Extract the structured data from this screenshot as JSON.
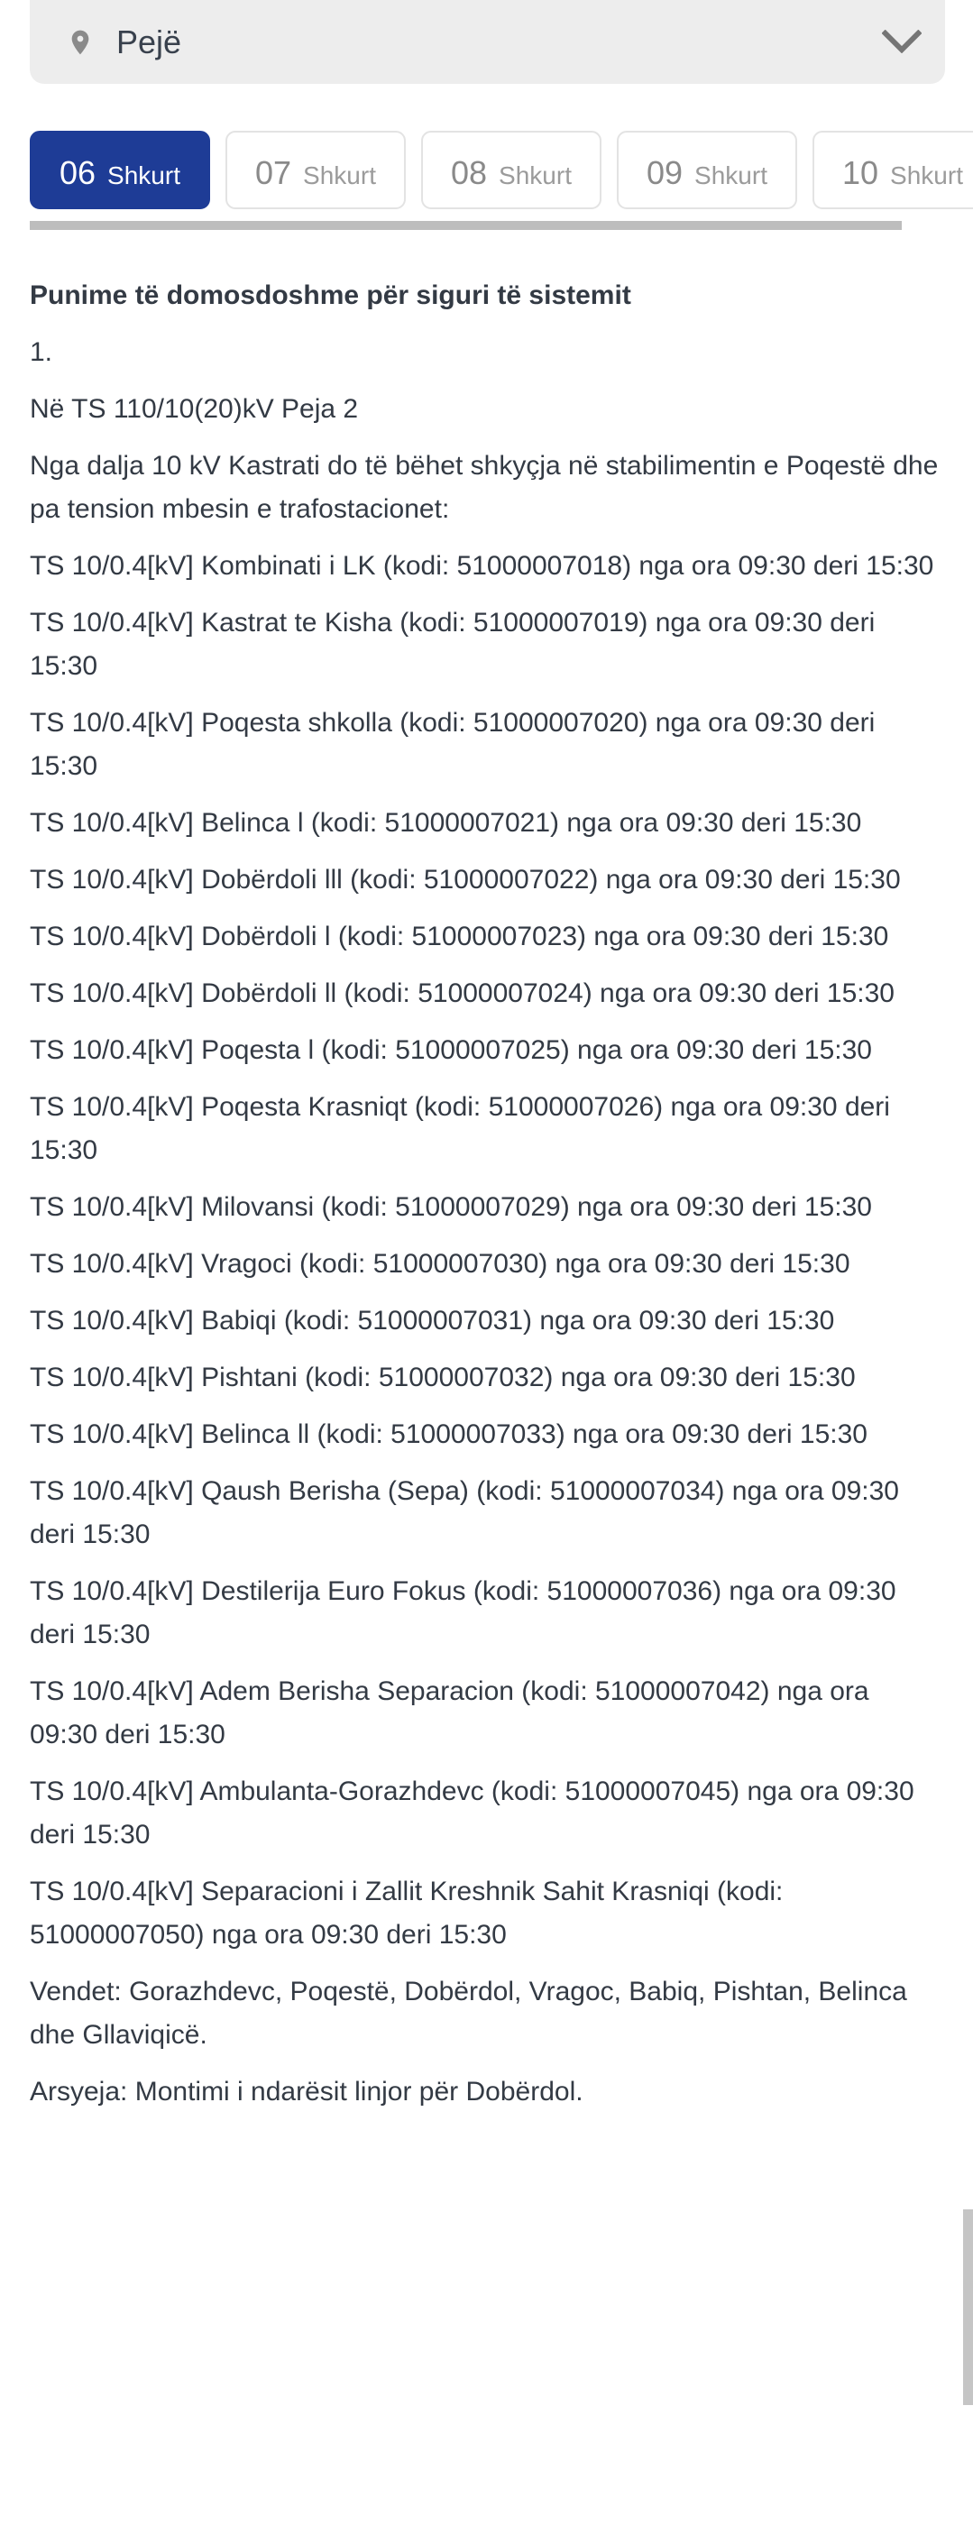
{
  "location": {
    "selected": "Pejë",
    "pin_icon": "map-pin-icon",
    "chevron_icon": "chevron-down-icon"
  },
  "date_tabs": [
    {
      "day": "06",
      "month": "Shkurt",
      "selected": true
    },
    {
      "day": "07",
      "month": "Shkurt",
      "selected": false
    },
    {
      "day": "08",
      "month": "Shkurt",
      "selected": false
    },
    {
      "day": "09",
      "month": "Shkurt",
      "selected": false
    },
    {
      "day": "10",
      "month": "Shkurt",
      "selected": false
    }
  ],
  "content": {
    "heading": "Punime të domosdoshme për siguri të sistemit",
    "paragraphs": [
      "1.",
      "Në TS 110/10(20)kV Peja 2",
      "Nga dalja 10 kV Kastrati do të bëhet shkyçja në stabilimentin e Poqestë dhe pa tension mbesin e trafostacionet:",
      "TS 10/0.4[kV] Kombinati i LK (kodi: 51000007018) nga ora 09:30 deri 15:30",
      "TS 10/0.4[kV] Kastrat te Kisha (kodi: 51000007019) nga ora 09:30 deri 15:30",
      "TS 10/0.4[kV] Poqesta shkolla (kodi: 51000007020) nga ora 09:30 deri 15:30",
      "TS 10/0.4[kV] Belinca l (kodi: 51000007021) nga ora 09:30 deri 15:30",
      "TS 10/0.4[kV] Dobërdoli lll (kodi: 51000007022) nga ora 09:30 deri 15:30",
      "TS 10/0.4[kV] Dobërdoli l (kodi: 51000007023) nga ora 09:30 deri 15:30",
      "TS 10/0.4[kV] Dobërdoli ll (kodi: 51000007024) nga ora 09:30 deri 15:30",
      "TS 10/0.4[kV] Poqesta l (kodi: 51000007025) nga ora 09:30 deri 15:30",
      "TS 10/0.4[kV] Poqesta Krasniqt (kodi: 51000007026) nga ora 09:30 deri 15:30",
      "TS 10/0.4[kV] Milovansi (kodi: 51000007029) nga ora 09:30 deri 15:30",
      "TS 10/0.4[kV] Vragoci (kodi: 51000007030) nga ora 09:30 deri 15:30",
      "TS 10/0.4[kV] Babiqi (kodi: 51000007031) nga ora 09:30 deri 15:30",
      "TS 10/0.4[kV] Pishtani (kodi: 51000007032) nga ora 09:30 deri 15:30",
      "TS 10/0.4[kV] Belinca ll (kodi: 51000007033) nga ora 09:30 deri 15:30",
      "TS 10/0.4[kV] Qaush Berisha (Sepa) (kodi: 51000007034) nga ora 09:30 deri 15:30",
      "TS 10/0.4[kV] Destilerija Euro Fokus (kodi: 51000007036) nga ora 09:30 deri 15:30",
      "TS 10/0.4[kV] Adem Berisha Separacion (kodi: 51000007042) nga ora 09:30 deri 15:30",
      "TS 10/0.4[kV] Ambulanta-Gorazhdevc (kodi: 51000007045) nga ora 09:30 deri 15:30",
      "TS 10/0.4[kV] Separacioni i Zallit Kreshnik Sahit Krasniqi (kodi: 51000007050) nga ora 09:30 deri 15:30",
      "Vendet: Gorazhdevc, Poqestë, Dobërdol, Vragoc, Babiq, Pishtan, Belinca dhe Gllaviqicë.",
      "Arsyeja: Montimi i ndarësit linjor për Dobërdol."
    ]
  },
  "colors": {
    "selected_tab_background": "#1e3c96",
    "tab_border": "#e3e3e3",
    "location_bar_background": "#ededed",
    "body_text": "#333a44",
    "tab_text_unselected": "#8a8a8a",
    "scrollbar": "#bdbdbd"
  }
}
